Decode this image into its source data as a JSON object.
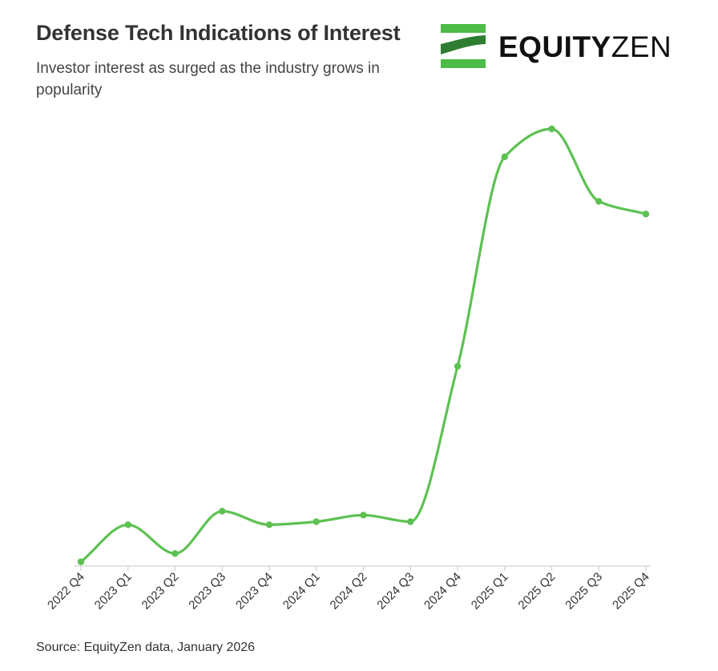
{
  "header": {
    "title": "Defense Tech Indications of Interest",
    "subtitle": "Investor interest as surged as the industry grows in popularity"
  },
  "logo": {
    "bold_text": "EQUITY",
    "light_text": "ZEN",
    "icon": "equityzen-logo-mark",
    "color": "#4cbb47"
  },
  "colors": {
    "line": "#5dc152",
    "axis": "#d9d9d9",
    "text": "#333333"
  },
  "chart_data": {
    "type": "line",
    "categories": [
      "2022 Q4",
      "2023 Q1",
      "2023 Q2",
      "2023 Q3",
      "2023 Q4",
      "2024 Q1",
      "2024 Q2",
      "2024 Q3",
      "2024 Q4",
      "2025 Q1",
      "2025 Q2",
      "2025 Q3",
      "2025 Q4"
    ],
    "series": [
      {
        "values": [
          0.8,
          9.3,
          2.7,
          12.4,
          9.3,
          10.0,
          11.5,
          10.0,
          45.6,
          93.6,
          100.0,
          83.4,
          80.5
        ]
      }
    ],
    "ylim": [
      0,
      100
    ],
    "y_axis_visible": false,
    "grid": false,
    "smooth": true,
    "markers": true
  },
  "footer": {
    "source": "Source: EquityZen data, January 2026"
  }
}
